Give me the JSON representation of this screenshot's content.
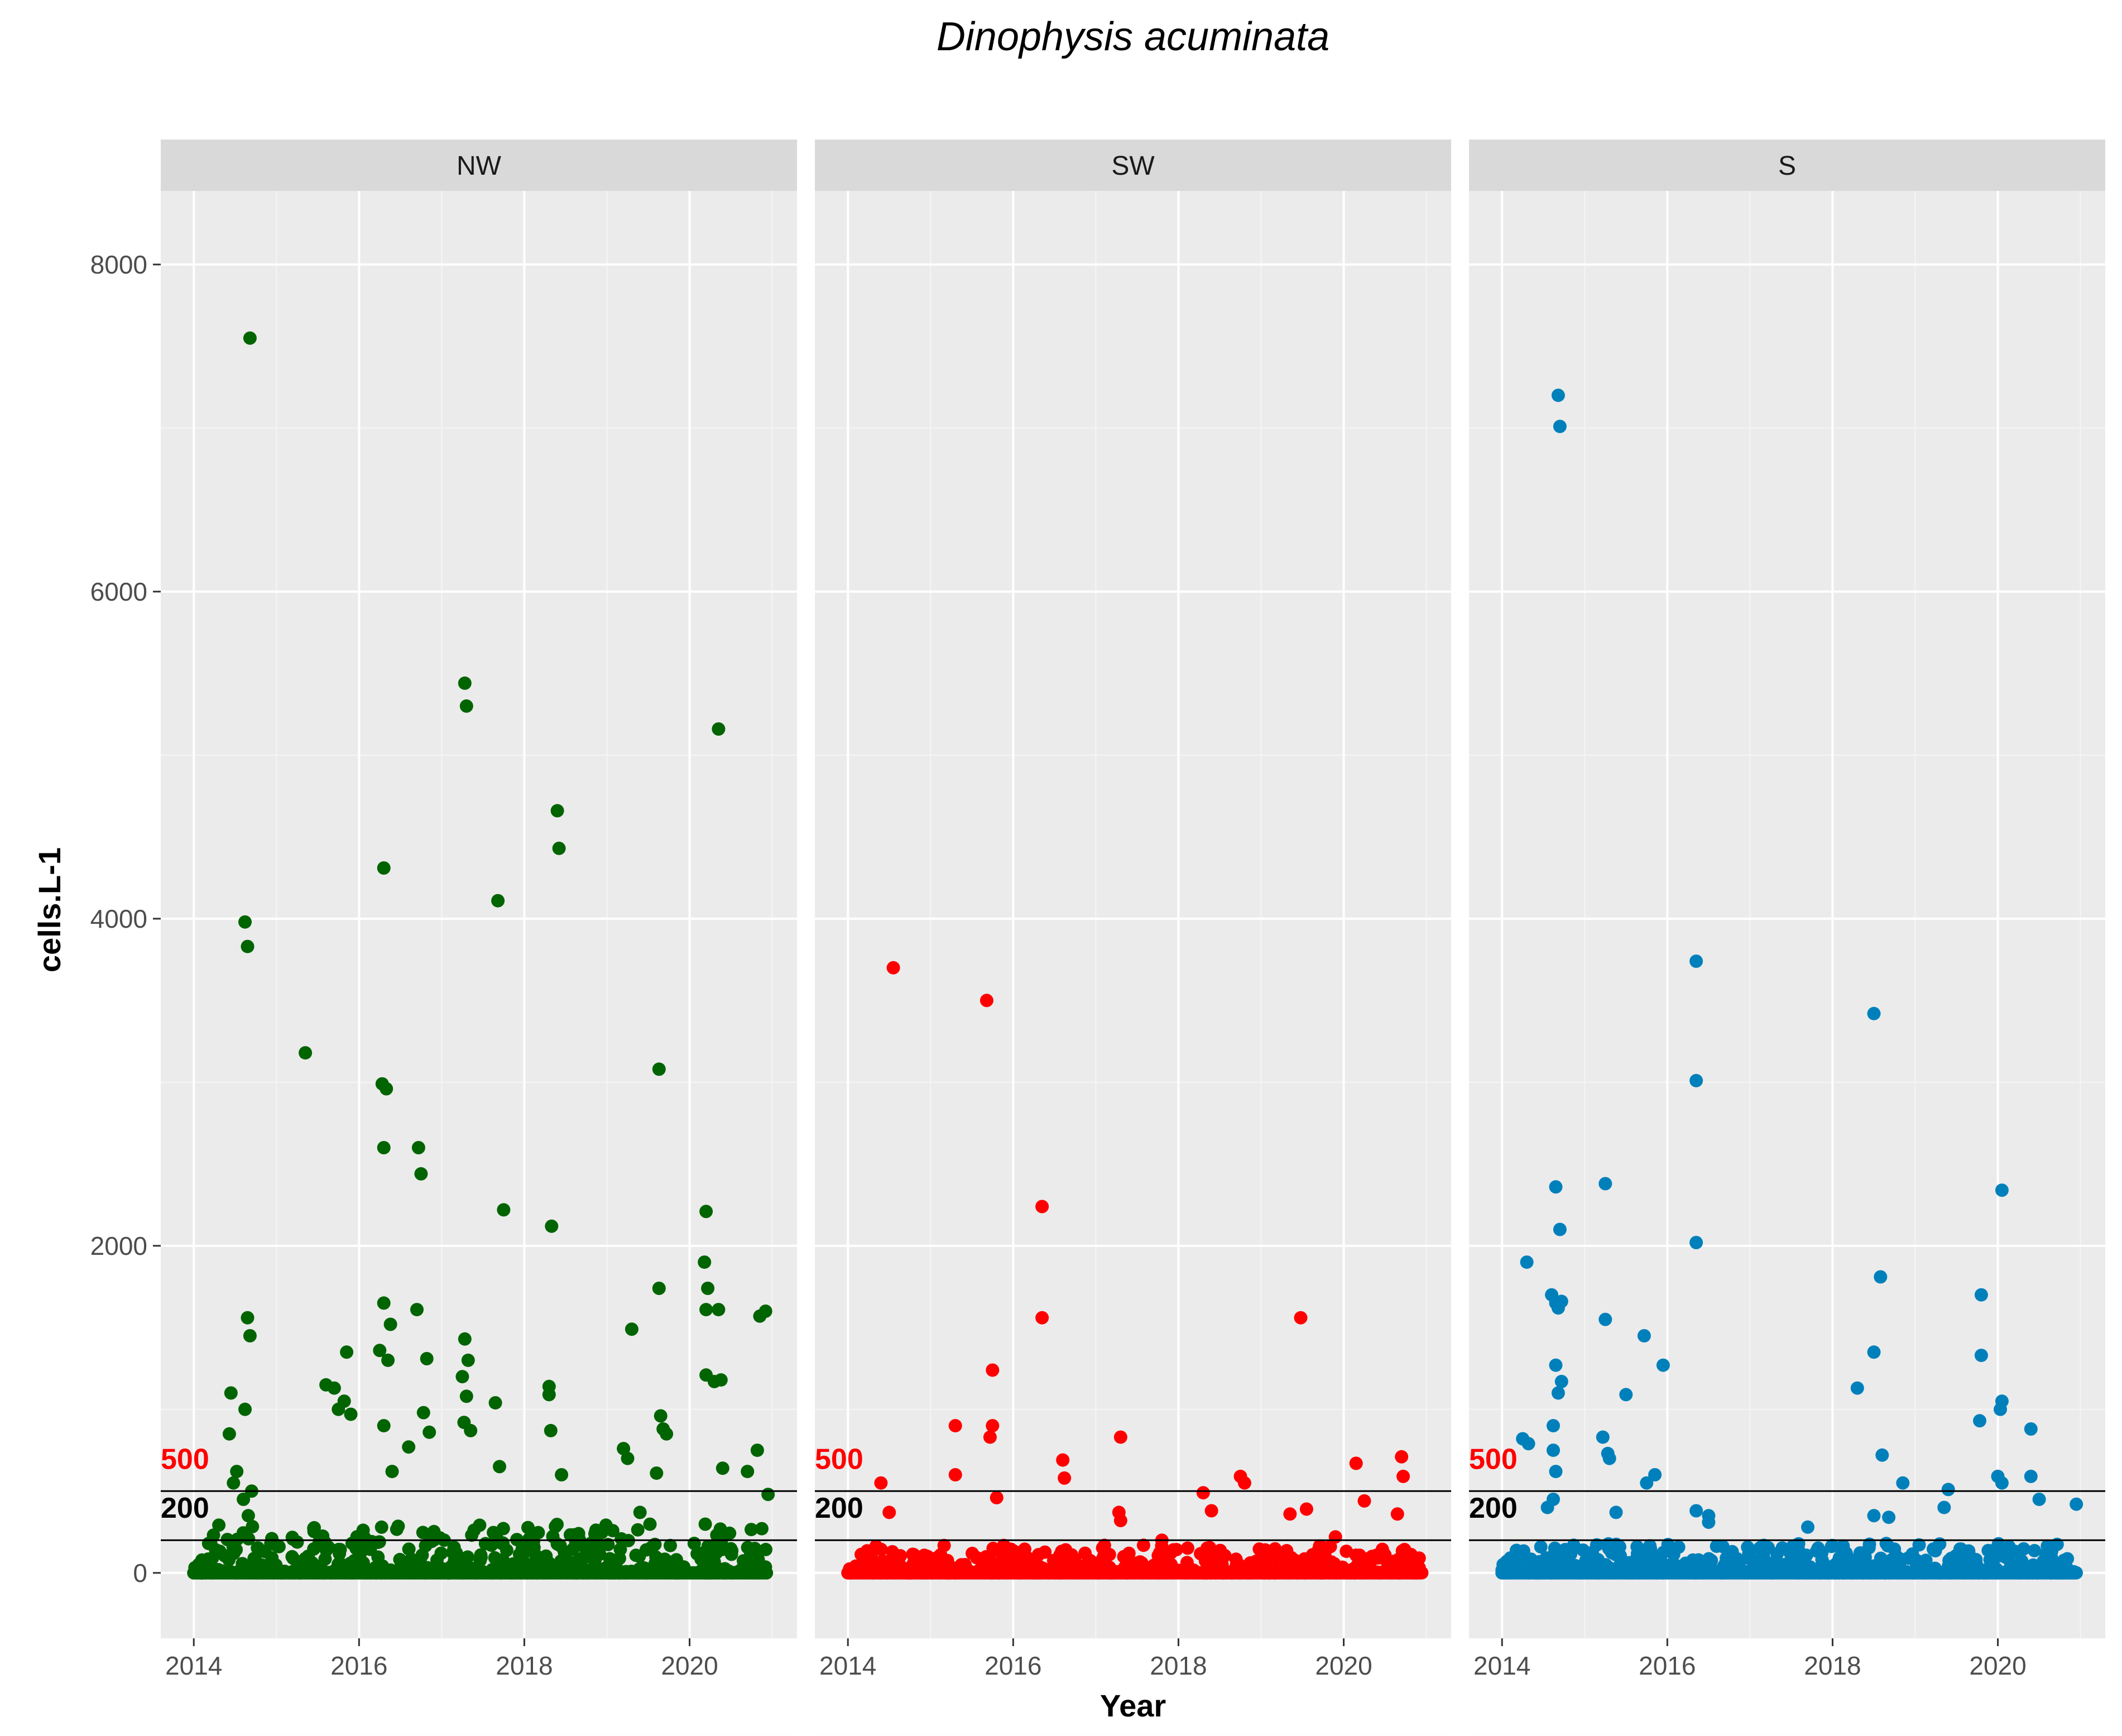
{
  "chart_data": {
    "type": "scatter",
    "title": "Dinophysis acuminata",
    "xlabel": "Year",
    "ylabel": "cells.L-1",
    "xlim": [
      2013.6,
      2021.3
    ],
    "ylim": [
      -400,
      8450
    ],
    "x_ticks": [
      2014,
      2016,
      2018,
      2020
    ],
    "x_tick_labels": [
      "2014",
      "2016",
      "2018",
      "2020"
    ],
    "y_ticks": [
      0,
      2000,
      4000,
      6000,
      8000
    ],
    "y_tick_labels": [
      "0",
      "2000",
      "4000",
      "6000",
      "8000"
    ],
    "reference_lines": [
      {
        "value": 500,
        "label": "500",
        "color": "#ff0000"
      },
      {
        "value": 200,
        "label": "200",
        "color": "#000000"
      }
    ],
    "series": [
      {
        "name": "NW",
        "color": "#006400",
        "points": [
          [
            2014.68,
            7550
          ],
          [
            2014.62,
            3980
          ],
          [
            2014.65,
            3830
          ],
          [
            2014.65,
            1560
          ],
          [
            2014.68,
            1450
          ],
          [
            2014.62,
            1000
          ],
          [
            2014.45,
            1100
          ],
          [
            2014.43,
            850
          ],
          [
            2014.52,
            620
          ],
          [
            2014.48,
            550
          ],
          [
            2014.7,
            500
          ],
          [
            2014.6,
            450
          ],
          [
            2014.66,
            350
          ],
          [
            2015.35,
            3180
          ],
          [
            2015.85,
            1350
          ],
          [
            2015.6,
            1150
          ],
          [
            2015.7,
            1130
          ],
          [
            2015.75,
            1000
          ],
          [
            2015.82,
            1050
          ],
          [
            2015.9,
            970
          ],
          [
            2016.3,
            4310
          ],
          [
            2016.28,
            2990
          ],
          [
            2016.33,
            2960
          ],
          [
            2016.3,
            2600
          ],
          [
            2016.3,
            1650
          ],
          [
            2016.38,
            1520
          ],
          [
            2016.35,
            1300
          ],
          [
            2016.25,
            1360
          ],
          [
            2016.3,
            900
          ],
          [
            2016.4,
            620
          ],
          [
            2016.72,
            2600
          ],
          [
            2016.75,
            2440
          ],
          [
            2016.7,
            1610
          ],
          [
            2016.82,
            1310
          ],
          [
            2016.78,
            980
          ],
          [
            2016.85,
            860
          ],
          [
            2016.6,
            770
          ],
          [
            2017.28,
            5440
          ],
          [
            2017.3,
            5300
          ],
          [
            2017.28,
            1430
          ],
          [
            2017.32,
            1300
          ],
          [
            2017.25,
            1200
          ],
          [
            2017.3,
            1080
          ],
          [
            2017.27,
            920
          ],
          [
            2017.35,
            870
          ],
          [
            2017.68,
            4110
          ],
          [
            2017.75,
            2220
          ],
          [
            2017.65,
            1040
          ],
          [
            2017.7,
            650
          ],
          [
            2018.4,
            4660
          ],
          [
            2018.42,
            4430
          ],
          [
            2018.33,
            2120
          ],
          [
            2018.3,
            1140
          ],
          [
            2018.3,
            1090
          ],
          [
            2018.32,
            870
          ],
          [
            2018.45,
            600
          ],
          [
            2019.3,
            1490
          ],
          [
            2019.2,
            760
          ],
          [
            2019.25,
            700
          ],
          [
            2019.4,
            370
          ],
          [
            2019.63,
            3080
          ],
          [
            2019.63,
            1740
          ],
          [
            2019.65,
            960
          ],
          [
            2019.68,
            880
          ],
          [
            2019.72,
            850
          ],
          [
            2019.6,
            610
          ],
          [
            2020.35,
            5160
          ],
          [
            2020.2,
            2210
          ],
          [
            2020.18,
            1900
          ],
          [
            2020.22,
            1740
          ],
          [
            2020.2,
            1610
          ],
          [
            2020.35,
            1610
          ],
          [
            2020.2,
            1210
          ],
          [
            2020.3,
            1170
          ],
          [
            2020.38,
            1180
          ],
          [
            2020.4,
            640
          ],
          [
            2020.92,
            1600
          ],
          [
            2020.85,
            1570
          ],
          [
            2020.82,
            750
          ],
          [
            2020.7,
            620
          ],
          [
            2020.95,
            480
          ]
        ],
        "dense_band_max": 300
      },
      {
        "name": "SW",
        "color": "#ff0000",
        "points": [
          [
            2014.55,
            3700
          ],
          [
            2014.4,
            550
          ],
          [
            2014.5,
            370
          ],
          [
            2015.68,
            3500
          ],
          [
            2015.75,
            1240
          ],
          [
            2015.3,
            900
          ],
          [
            2015.75,
            900
          ],
          [
            2015.72,
            830
          ],
          [
            2015.3,
            600
          ],
          [
            2015.8,
            460
          ],
          [
            2016.35,
            2240
          ],
          [
            2016.35,
            1560
          ],
          [
            2016.6,
            690
          ],
          [
            2016.62,
            580
          ],
          [
            2017.3,
            830
          ],
          [
            2017.28,
            370
          ],
          [
            2017.3,
            320
          ],
          [
            2017.8,
            200
          ],
          [
            2018.3,
            490
          ],
          [
            2018.4,
            380
          ],
          [
            2018.75,
            590
          ],
          [
            2018.8,
            550
          ],
          [
            2019.48,
            1560
          ],
          [
            2019.35,
            360
          ],
          [
            2019.55,
            390
          ],
          [
            2020.15,
            670
          ],
          [
            2020.25,
            440
          ],
          [
            2020.7,
            710
          ],
          [
            2020.72,
            590
          ],
          [
            2020.65,
            360
          ],
          [
            2019.9,
            220
          ]
        ],
        "dense_band_max": 170
      },
      {
        "name": "S",
        "color": "#0080bb",
        "points": [
          [
            2014.68,
            7200
          ],
          [
            2014.7,
            7010
          ],
          [
            2014.3,
            1900
          ],
          [
            2014.65,
            2360
          ],
          [
            2014.7,
            2100
          ],
          [
            2014.6,
            1700
          ],
          [
            2014.65,
            1650
          ],
          [
            2014.68,
            1620
          ],
          [
            2014.72,
            1660
          ],
          [
            2014.65,
            1270
          ],
          [
            2014.72,
            1170
          ],
          [
            2014.68,
            1100
          ],
          [
            2014.62,
            900
          ],
          [
            2014.25,
            820
          ],
          [
            2014.32,
            790
          ],
          [
            2014.62,
            750
          ],
          [
            2014.65,
            620
          ],
          [
            2014.62,
            450
          ],
          [
            2014.55,
            400
          ],
          [
            2015.25,
            2380
          ],
          [
            2015.25,
            1550
          ],
          [
            2015.5,
            1090
          ],
          [
            2015.22,
            830
          ],
          [
            2015.28,
            730
          ],
          [
            2015.3,
            700
          ],
          [
            2015.38,
            370
          ],
          [
            2015.72,
            1450
          ],
          [
            2015.95,
            1270
          ],
          [
            2015.85,
            600
          ],
          [
            2015.75,
            550
          ],
          [
            2016.35,
            3740
          ],
          [
            2016.35,
            3010
          ],
          [
            2016.35,
            2020
          ],
          [
            2016.35,
            380
          ],
          [
            2016.5,
            350
          ],
          [
            2016.5,
            310
          ],
          [
            2018.5,
            3420
          ],
          [
            2018.58,
            1810
          ],
          [
            2018.5,
            1350
          ],
          [
            2018.3,
            1130
          ],
          [
            2018.6,
            720
          ],
          [
            2018.85,
            550
          ],
          [
            2018.5,
            350
          ],
          [
            2018.68,
            340
          ],
          [
            2017.7,
            280
          ],
          [
            2019.8,
            1700
          ],
          [
            2019.8,
            1330
          ],
          [
            2019.78,
            930
          ],
          [
            2020.05,
            2340
          ],
          [
            2020.05,
            1050
          ],
          [
            2020.03,
            1000
          ],
          [
            2020.0,
            590
          ],
          [
            2020.05,
            550
          ],
          [
            2020.4,
            880
          ],
          [
            2020.4,
            590
          ],
          [
            2020.5,
            450
          ],
          [
            2020.95,
            420
          ],
          [
            2019.4,
            510
          ],
          [
            2019.35,
            400
          ]
        ],
        "dense_band_max": 180
      }
    ]
  }
}
